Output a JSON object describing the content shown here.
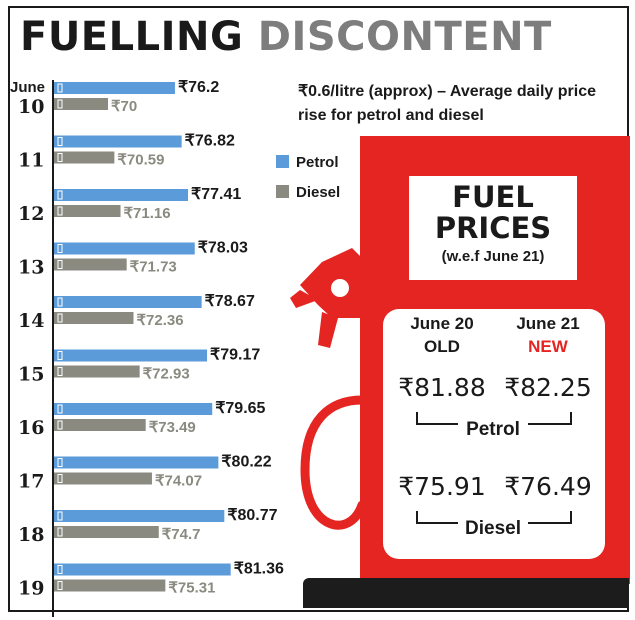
{
  "title": {
    "part1": "FUELLING",
    "part2": "DISCONTENT"
  },
  "note": "₹0.6/litre (approx) – Average daily price rise for petrol and diesel",
  "legend": [
    {
      "label": "Petrol",
      "color": "#5b9bd9"
    },
    {
      "label": "Diesel",
      "color": "#8a8a80"
    }
  ],
  "chart_data": {
    "type": "bar",
    "orientation": "horizontal",
    "month_label": "June",
    "categories": [
      "10",
      "11",
      "12",
      "13",
      "14",
      "15",
      "16",
      "17",
      "18",
      "19"
    ],
    "series": [
      {
        "name": "Petrol",
        "color": "#5b9bd9",
        "values": [
          76.2,
          76.82,
          77.41,
          78.03,
          78.67,
          79.17,
          79.65,
          80.22,
          80.77,
          81.36
        ],
        "labels": [
          "₹76.2",
          "₹76.82",
          "₹77.41",
          "₹78.03",
          "₹78.67",
          "₹79.17",
          "₹79.65",
          "₹80.22",
          "₹80.77",
          "₹81.36"
        ]
      },
      {
        "name": "Diesel",
        "color": "#8a8a80",
        "values": [
          70,
          70.59,
          71.16,
          71.73,
          72.36,
          72.93,
          73.49,
          74.07,
          74.7,
          75.31
        ],
        "labels": [
          "₹70",
          "₹70.59",
          "₹71.16",
          "₹71.73",
          "₹72.36",
          "₹72.93",
          "₹73.49",
          "₹74.07",
          "₹74.7",
          "₹75.31"
        ]
      }
    ]
  },
  "fuel_prices": {
    "heading_line1": "FUEL",
    "heading_line2": "PRICES",
    "subheading": "(w.e.f June 21)",
    "old_date": "June 20",
    "old_label": "OLD",
    "new_date": "June 21",
    "new_label": "NEW",
    "new_color": "#e52521",
    "petrol_old": "₹81.88",
    "petrol_new": "₹82.25",
    "petrol_label": "Petrol",
    "diesel_old": "₹75.91",
    "diesel_new": "₹76.49",
    "diesel_label": "Diesel"
  },
  "colors": {
    "board": "#e52521",
    "base": "#1c1c1c",
    "title_grey": "#7d7d7d"
  },
  "icons": [
    "fuel-nozzle-icon",
    "fuel-hose-icon"
  ]
}
